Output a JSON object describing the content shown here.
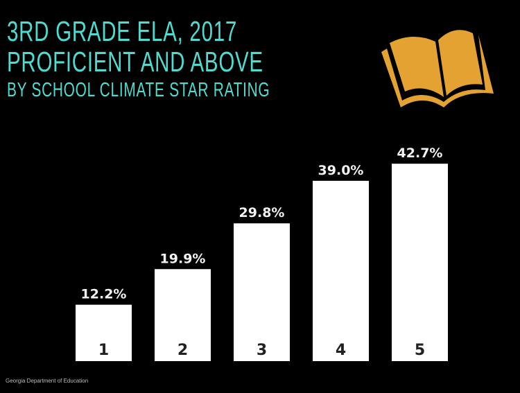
{
  "chart_data": {
    "type": "bar",
    "title": "3RD GRADE ELA, 2017",
    "title_line2": "PROFICIENT AND ABOVE",
    "subtitle": "BY SCHOOL CLIMATE STAR RATING",
    "categories": [
      "1",
      "2",
      "3",
      "4",
      "5"
    ],
    "values": [
      12.2,
      19.9,
      29.8,
      39.0,
      42.7
    ],
    "value_labels": [
      "12.2%",
      "19.9%",
      "29.8%",
      "39.0%",
      "42.7%"
    ],
    "ylim": [
      0,
      50
    ],
    "grid": false,
    "source": "Georgia Department of Education",
    "colors": {
      "background": "#000000",
      "bar": "#ffffff",
      "title": "#4fdcd0",
      "icon": "#e3a232"
    }
  },
  "icon": "open-book-icon"
}
